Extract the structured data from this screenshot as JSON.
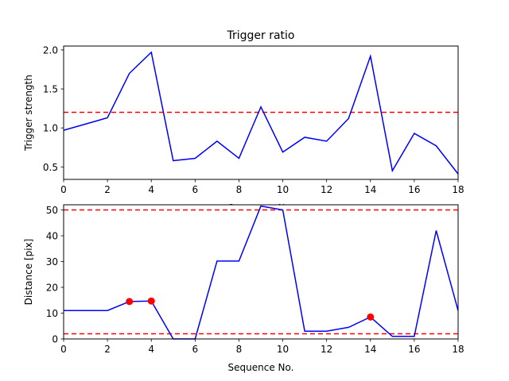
{
  "chart_data": [
    {
      "type": "line",
      "title": "Trigger ratio",
      "xlabel": "Sequence No.",
      "ylabel": "Trigger strength",
      "xlim": [
        0,
        18
      ],
      "ylim": [
        0.34,
        2.05
      ],
      "xticks": [
        0,
        2,
        4,
        6,
        8,
        10,
        12,
        14,
        16,
        18
      ],
      "yticks": [
        0.5,
        1.0,
        1.5,
        2.0
      ],
      "ytick_labels": [
        "0.5",
        "1.0",
        "1.5",
        "2.0"
      ],
      "grid": false,
      "series": [
        {
          "color": "#0000ff",
          "x": [
            0,
            2,
            3,
            4,
            5,
            6,
            7,
            8,
            9,
            10,
            11,
            12,
            13,
            14,
            15,
            16,
            17,
            18
          ],
          "y": [
            0.97,
            1.13,
            1.7,
            1.97,
            0.58,
            0.61,
            0.83,
            0.61,
            1.27,
            0.69,
            0.88,
            0.83,
            1.12,
            1.92,
            0.45,
            0.93,
            0.77,
            0.41
          ]
        }
      ],
      "hlines": [
        {
          "y": 1.2,
          "color": "#ff0000",
          "style": "dashed"
        }
      ]
    },
    {
      "type": "line",
      "title": "",
      "xlabel": "Sequence No.",
      "ylabel": "Distance [pix]",
      "xlim": [
        0,
        18
      ],
      "ylim": [
        0,
        52
      ],
      "xticks": [
        0,
        2,
        4,
        6,
        8,
        10,
        12,
        14,
        16,
        18
      ],
      "yticks": [
        0,
        10,
        20,
        30,
        40,
        50
      ],
      "ytick_labels": [
        "0",
        "10",
        "20",
        "30",
        "40",
        "50"
      ],
      "grid": false,
      "series": [
        {
          "color": "#0000ff",
          "x": [
            0,
            2,
            3,
            4,
            5,
            6,
            7,
            8,
            9,
            10,
            11,
            12,
            13,
            14,
            15,
            16,
            17,
            18
          ],
          "y": [
            11,
            11,
            14.5,
            14.7,
            0,
            0,
            30.2,
            30.2,
            51.5,
            50,
            3,
            3,
            4.5,
            8.5,
            1,
            1,
            42,
            11
          ]
        }
      ],
      "markers": {
        "color": "#ff0000",
        "points": [
          {
            "x": 3,
            "y": 14.5
          },
          {
            "x": 4,
            "y": 14.7
          },
          {
            "x": 14,
            "y": 8.5
          }
        ]
      },
      "hlines": [
        {
          "y": 50,
          "color": "#ff0000",
          "style": "dashed"
        },
        {
          "y": 2,
          "color": "#ff0000",
          "style": "dashed"
        }
      ]
    }
  ]
}
